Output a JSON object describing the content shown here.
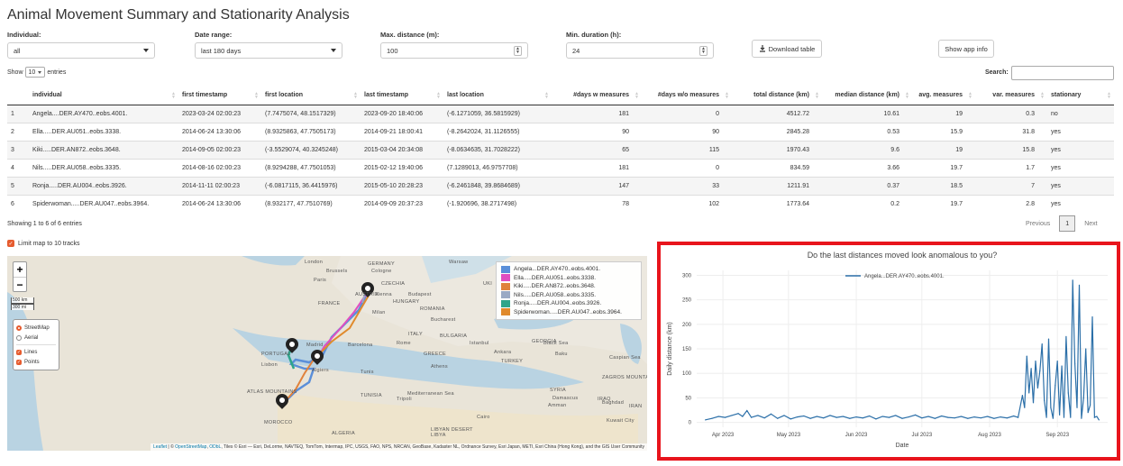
{
  "title": "Animal Movement Summary and Stationarity Analysis",
  "filters": {
    "individual": {
      "label": "Individual:",
      "value": "all"
    },
    "date_range": {
      "label": "Date range:",
      "value": "last 180 days"
    },
    "max_distance": {
      "label": "Max. distance (m):",
      "value": "100"
    },
    "min_duration": {
      "label": "Min. duration (h):",
      "value": "24"
    }
  },
  "buttons": {
    "download": "Download table",
    "app_info": "Show app info"
  },
  "table_controls": {
    "show": "Show",
    "entries_value": "10",
    "entries": "entries",
    "search_label": "Search:",
    "info": "Showing 1 to 6 of 6 entries",
    "previous": "Previous",
    "page": "1",
    "next": "Next"
  },
  "table": {
    "columns": [
      "individual",
      "first timestamp",
      "first location",
      "last timestamp",
      "last location",
      "#days w measures",
      "#days w/o measures",
      "total distance (km)",
      "median distance (km)",
      "avg. measures",
      "var. measures",
      "stationary"
    ],
    "rows": [
      [
        "1",
        "Angela....DER.AY470..eobs.4001.",
        "2023-03-24 02:00:23",
        "(7.7475074, 48.1517329)",
        "2023-09-20 18:40:06",
        "(-6.1271059, 36.5815929)",
        "181",
        "0",
        "4512.72",
        "10.61",
        "19",
        "0.3",
        "no"
      ],
      [
        "2",
        "Ella.....DER.AU051..eobs.3338.",
        "2014-06-24 13:30:06",
        "(8.9325863, 47.7505173)",
        "2014-09-21 18:00:41",
        "(-8.2642024, 31.1126555)",
        "90",
        "90",
        "2845.28",
        "0.53",
        "15.9",
        "31.8",
        "yes"
      ],
      [
        "3",
        "Kiki.....DER.AN872..eobs.3648.",
        "2014-09-05 02:00:23",
        "(-3.5529074, 40.3245248)",
        "2015-03-04 20:34:08",
        "(-8.0634635, 31.7028222)",
        "65",
        "115",
        "1970.43",
        "9.6",
        "19",
        "15.8",
        "yes"
      ],
      [
        "4",
        "Nils.....DER.AU058..eobs.3335.",
        "2014-08-16 02:00:23",
        "(8.9294288, 47.7501053)",
        "2015-02-12 19:40:06",
        "(7.1289013, 46.9757708)",
        "181",
        "0",
        "834.59",
        "3.66",
        "19.7",
        "1.7",
        "yes"
      ],
      [
        "5",
        "Ronja.....DER.AU004..eobs.3926.",
        "2014-11-11 02:00:23",
        "(-6.0817115, 36.4415976)",
        "2015-05-10 20:28:23",
        "(-6.2461848, 39.8684689)",
        "147",
        "33",
        "1211.91",
        "0.37",
        "18.5",
        "7",
        "yes"
      ],
      [
        "6",
        "Spiderwoman.....DER.AU047..eobs.3964.",
        "2014-06-24 13:30:06",
        "(8.932177, 47.7510769)",
        "2014-09-09 20:37:23",
        "(-1.920696, 38.2717498)",
        "78",
        "102",
        "1773.64",
        "0.2",
        "19.7",
        "2.8",
        "yes"
      ]
    ]
  },
  "limit_map": "Limit map to 10 tracks",
  "map": {
    "scale_km": "500 km",
    "scale_mi": "300 mi",
    "layers": [
      "StreetMap",
      "Aerial"
    ],
    "overlays": [
      "Lines",
      "Points"
    ],
    "legend": [
      {
        "name": "Angela...DER.AY470..eobs.4001.",
        "color": "#5b8fd9"
      },
      {
        "name": "Ella.....DER.AU051..eobs.3338.",
        "color": "#e04ec0"
      },
      {
        "name": "Kiki.....DER.AN872..eobs.3648.",
        "color": "#e0823c"
      },
      {
        "name": "Nils.....DER.AU058..eobs.3335.",
        "color": "#9aa9c4"
      },
      {
        "name": "Ronja.....DER.AU004..eobs.3926.",
        "color": "#2ea58a"
      },
      {
        "name": "Spiderwoman.....DER.AU047..eobs.3964.",
        "color": "#e08a2c"
      }
    ],
    "labels": [
      "London",
      "Brussels",
      "GERMANY",
      "Cologne",
      "Warsaw",
      "UKI",
      "Paris",
      "CZECHIA",
      "AUSTRIA",
      "Vienna",
      "Budapest",
      "HUNGARY",
      "FRANCE",
      "Milan",
      "ROMANIA",
      "Bucharest",
      "BULGARIA",
      "ITALY",
      "Rome",
      "Barcelona",
      "Madrid",
      "PORTUGAL",
      "Lisbon",
      "Algiers",
      "Tunis",
      "Istanbul",
      "Ankara",
      "TURKEY",
      "GREECE",
      "Athens",
      "GEORGIA",
      "Baku",
      "TUNISIA",
      "Tripoli",
      "ATLAS MOUNTAINS",
      "MOROCCO",
      "ALGERIA",
      "LIBYA",
      "Cairo",
      "Mediterranean Sea",
      "Black Sea",
      "Caspian Sea",
      "SYRIA",
      "Damascus",
      "IRAQ",
      "Baghdad",
      "Amman",
      "IRAN",
      "Kuwait City",
      "LIBYAN DESERT",
      "ZAGROS MOUNTAINS"
    ],
    "attribution": {
      "leaflet": "Leaflet",
      "osm": "OpenStreetMap",
      "odbl": "ODbL",
      "tiles": ", Tiles © Esri — Esri, DeLorme, NAVTEQ, TomTom, Intermap, IPC, USGS, FAO, NPS, NRCAN, GeoBase, Kadaster NL, Ordnance Survey, Esri Japan, METI, Esri China (Hong Kong), and the GIS User Community"
    }
  },
  "chart_data": {
    "type": "line",
    "title": "Do the last distances moved look anomalous to you?",
    "xlabel": "Date",
    "ylabel": "Daily distance (km)",
    "ylim": [
      -10,
      310
    ],
    "yticks": [
      0,
      50,
      100,
      150,
      200,
      250,
      300
    ],
    "xlim": [
      "2023-03-20",
      "2023-09-24"
    ],
    "xticks": [
      {
        "date": "2023-04-01",
        "label": "Apr 2023"
      },
      {
        "date": "2023-05-01",
        "label": "May 2023"
      },
      {
        "date": "2023-06-01",
        "label": "Jun 2023"
      },
      {
        "date": "2023-07-01",
        "label": "Jul 2023"
      },
      {
        "date": "2023-08-01",
        "label": "Aug 2023"
      },
      {
        "date": "2023-09-01",
        "label": "Sep 2023"
      }
    ],
    "series": [
      {
        "name": "Angela...DER.AY470..eobs.4001.",
        "color": "#2b6fa8",
        "points": [
          [
            "2023-03-24",
            5
          ],
          [
            "2023-03-27",
            8
          ],
          [
            "2023-03-30",
            12
          ],
          [
            "2023-04-02",
            10
          ],
          [
            "2023-04-05",
            14
          ],
          [
            "2023-04-08",
            18
          ],
          [
            "2023-04-10",
            12
          ],
          [
            "2023-04-12",
            24
          ],
          [
            "2023-04-14",
            10
          ],
          [
            "2023-04-17",
            14
          ],
          [
            "2023-04-20",
            9
          ],
          [
            "2023-04-23",
            17
          ],
          [
            "2023-04-26",
            8
          ],
          [
            "2023-04-29",
            14
          ],
          [
            "2023-05-02",
            7
          ],
          [
            "2023-05-05",
            11
          ],
          [
            "2023-05-08",
            13
          ],
          [
            "2023-05-11",
            8
          ],
          [
            "2023-05-14",
            12
          ],
          [
            "2023-05-17",
            9
          ],
          [
            "2023-05-20",
            14
          ],
          [
            "2023-05-23",
            10
          ],
          [
            "2023-05-26",
            12
          ],
          [
            "2023-05-29",
            8
          ],
          [
            "2023-06-01",
            11
          ],
          [
            "2023-06-04",
            9
          ],
          [
            "2023-06-07",
            13
          ],
          [
            "2023-06-10",
            7
          ],
          [
            "2023-06-13",
            12
          ],
          [
            "2023-06-16",
            10
          ],
          [
            "2023-06-19",
            14
          ],
          [
            "2023-06-22",
            8
          ],
          [
            "2023-06-25",
            11
          ],
          [
            "2023-06-28",
            15
          ],
          [
            "2023-07-01",
            9
          ],
          [
            "2023-07-04",
            12
          ],
          [
            "2023-07-07",
            8
          ],
          [
            "2023-07-10",
            13
          ],
          [
            "2023-07-13",
            10
          ],
          [
            "2023-07-16",
            9
          ],
          [
            "2023-07-19",
            12
          ],
          [
            "2023-07-22",
            8
          ],
          [
            "2023-07-25",
            11
          ],
          [
            "2023-07-28",
            9
          ],
          [
            "2023-07-31",
            12
          ],
          [
            "2023-08-03",
            8
          ],
          [
            "2023-08-06",
            11
          ],
          [
            "2023-08-09",
            9
          ],
          [
            "2023-08-12",
            13
          ],
          [
            "2023-08-14",
            10
          ],
          [
            "2023-08-16",
            55
          ],
          [
            "2023-08-17",
            30
          ],
          [
            "2023-08-18",
            135
          ],
          [
            "2023-08-19",
            60
          ],
          [
            "2023-08-20",
            110
          ],
          [
            "2023-08-21",
            40
          ],
          [
            "2023-08-22",
            125
          ],
          [
            "2023-08-23",
            70
          ],
          [
            "2023-08-24",
            105
          ],
          [
            "2023-08-25",
            160
          ],
          [
            "2023-08-26",
            45
          ],
          [
            "2023-08-27",
            10
          ],
          [
            "2023-08-28",
            170
          ],
          [
            "2023-08-29",
            30
          ],
          [
            "2023-08-30",
            8
          ],
          [
            "2023-08-31",
            75
          ],
          [
            "2023-09-01",
            125
          ],
          [
            "2023-09-02",
            15
          ],
          [
            "2023-09-03",
            115
          ],
          [
            "2023-09-04",
            10
          ],
          [
            "2023-09-05",
            175
          ],
          [
            "2023-09-06",
            60
          ],
          [
            "2023-09-07",
            10
          ],
          [
            "2023-09-08",
            290
          ],
          [
            "2023-09-09",
            120
          ],
          [
            "2023-09-10",
            30
          ],
          [
            "2023-09-11",
            280
          ],
          [
            "2023-09-12",
            8
          ],
          [
            "2023-09-13",
            50
          ],
          [
            "2023-09-14",
            150
          ],
          [
            "2023-09-15",
            20
          ],
          [
            "2023-09-16",
            35
          ],
          [
            "2023-09-17",
            215
          ],
          [
            "2023-09-18",
            10
          ],
          [
            "2023-09-19",
            12
          ],
          [
            "2023-09-20",
            5
          ]
        ]
      }
    ]
  }
}
